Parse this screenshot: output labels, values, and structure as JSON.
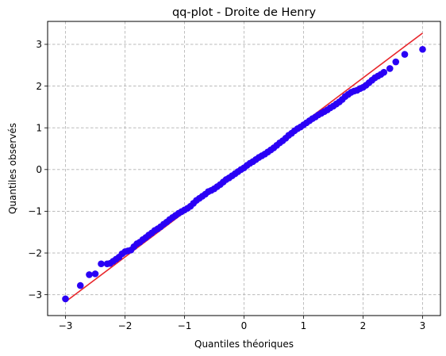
{
  "chart_data": {
    "type": "scatter",
    "title": "qq-plot - Droite de Henry",
    "xlabel": "Quantiles théoriques",
    "ylabel": "Quantiles observés",
    "xlim": [
      -3.3,
      3.3
    ],
    "ylim": [
      -3.5,
      3.55
    ],
    "xticks": [
      -3,
      -2,
      -1,
      0,
      1,
      2,
      3
    ],
    "yticks": [
      -3,
      -2,
      -1,
      0,
      1,
      2,
      3
    ],
    "grid": true,
    "grid_style": "dashed",
    "colors": {
      "points": "#2a00f5",
      "line": "#e8262b",
      "grid": "#b0b0b0"
    },
    "series": [
      {
        "kind": "points",
        "x": [
          -3.0,
          -2.75,
          -2.6,
          -2.5,
          -2.4,
          -2.3,
          -2.25,
          -2.2,
          -2.15,
          -2.1,
          -2.05,
          -2.0,
          -1.95,
          -1.9,
          -1.85,
          -1.8,
          -1.75,
          -1.7,
          -1.65,
          -1.6,
          -1.55,
          -1.5,
          -1.45,
          -1.4,
          -1.35,
          -1.3,
          -1.25,
          -1.2,
          -1.15,
          -1.1,
          -1.05,
          -1.0,
          -0.95,
          -0.9,
          -0.85,
          -0.8,
          -0.75,
          -0.7,
          -0.65,
          -0.6,
          -0.55,
          -0.5,
          -0.45,
          -0.4,
          -0.35,
          -0.3,
          -0.25,
          -0.2,
          -0.15,
          -0.1,
          -0.05,
          0.0,
          0.05,
          0.1,
          0.15,
          0.2,
          0.25,
          0.3,
          0.35,
          0.4,
          0.45,
          0.5,
          0.55,
          0.6,
          0.65,
          0.7,
          0.75,
          0.8,
          0.85,
          0.9,
          0.95,
          1.0,
          1.05,
          1.1,
          1.15,
          1.2,
          1.25,
          1.3,
          1.35,
          1.4,
          1.45,
          1.5,
          1.55,
          1.6,
          1.65,
          1.7,
          1.75,
          1.8,
          1.85,
          1.9,
          1.95,
          2.0,
          2.05,
          2.1,
          2.15,
          2.2,
          2.25,
          2.3,
          2.35,
          2.45,
          2.55,
          2.7,
          3.0
        ],
        "y": [
          -3.1,
          -2.78,
          -2.52,
          -2.5,
          -2.26,
          -2.26,
          -2.25,
          -2.2,
          -2.15,
          -2.1,
          -2.02,
          -1.97,
          -1.95,
          -1.93,
          -1.85,
          -1.78,
          -1.74,
          -1.68,
          -1.63,
          -1.57,
          -1.52,
          -1.46,
          -1.42,
          -1.37,
          -1.31,
          -1.26,
          -1.2,
          -1.15,
          -1.1,
          -1.05,
          -1.01,
          -0.97,
          -0.93,
          -0.88,
          -0.81,
          -0.74,
          -0.69,
          -0.64,
          -0.59,
          -0.53,
          -0.5,
          -0.46,
          -0.41,
          -0.36,
          -0.3,
          -0.24,
          -0.2,
          -0.15,
          -0.1,
          -0.05,
          0.0,
          0.04,
          0.1,
          0.15,
          0.19,
          0.24,
          0.29,
          0.33,
          0.37,
          0.42,
          0.47,
          0.52,
          0.58,
          0.64,
          0.69,
          0.75,
          0.82,
          0.87,
          0.93,
          0.98,
          1.02,
          1.07,
          1.12,
          1.17,
          1.22,
          1.26,
          1.31,
          1.35,
          1.39,
          1.43,
          1.48,
          1.52,
          1.57,
          1.62,
          1.68,
          1.75,
          1.8,
          1.85,
          1.88,
          1.9,
          1.94,
          1.97,
          2.02,
          2.08,
          2.14,
          2.2,
          2.24,
          2.28,
          2.33,
          2.42,
          2.58,
          2.76,
          2.88
        ]
      },
      {
        "kind": "line",
        "x": [
          -3.0,
          3.0
        ],
        "y": [
          -3.17,
          3.27
        ]
      }
    ]
  }
}
